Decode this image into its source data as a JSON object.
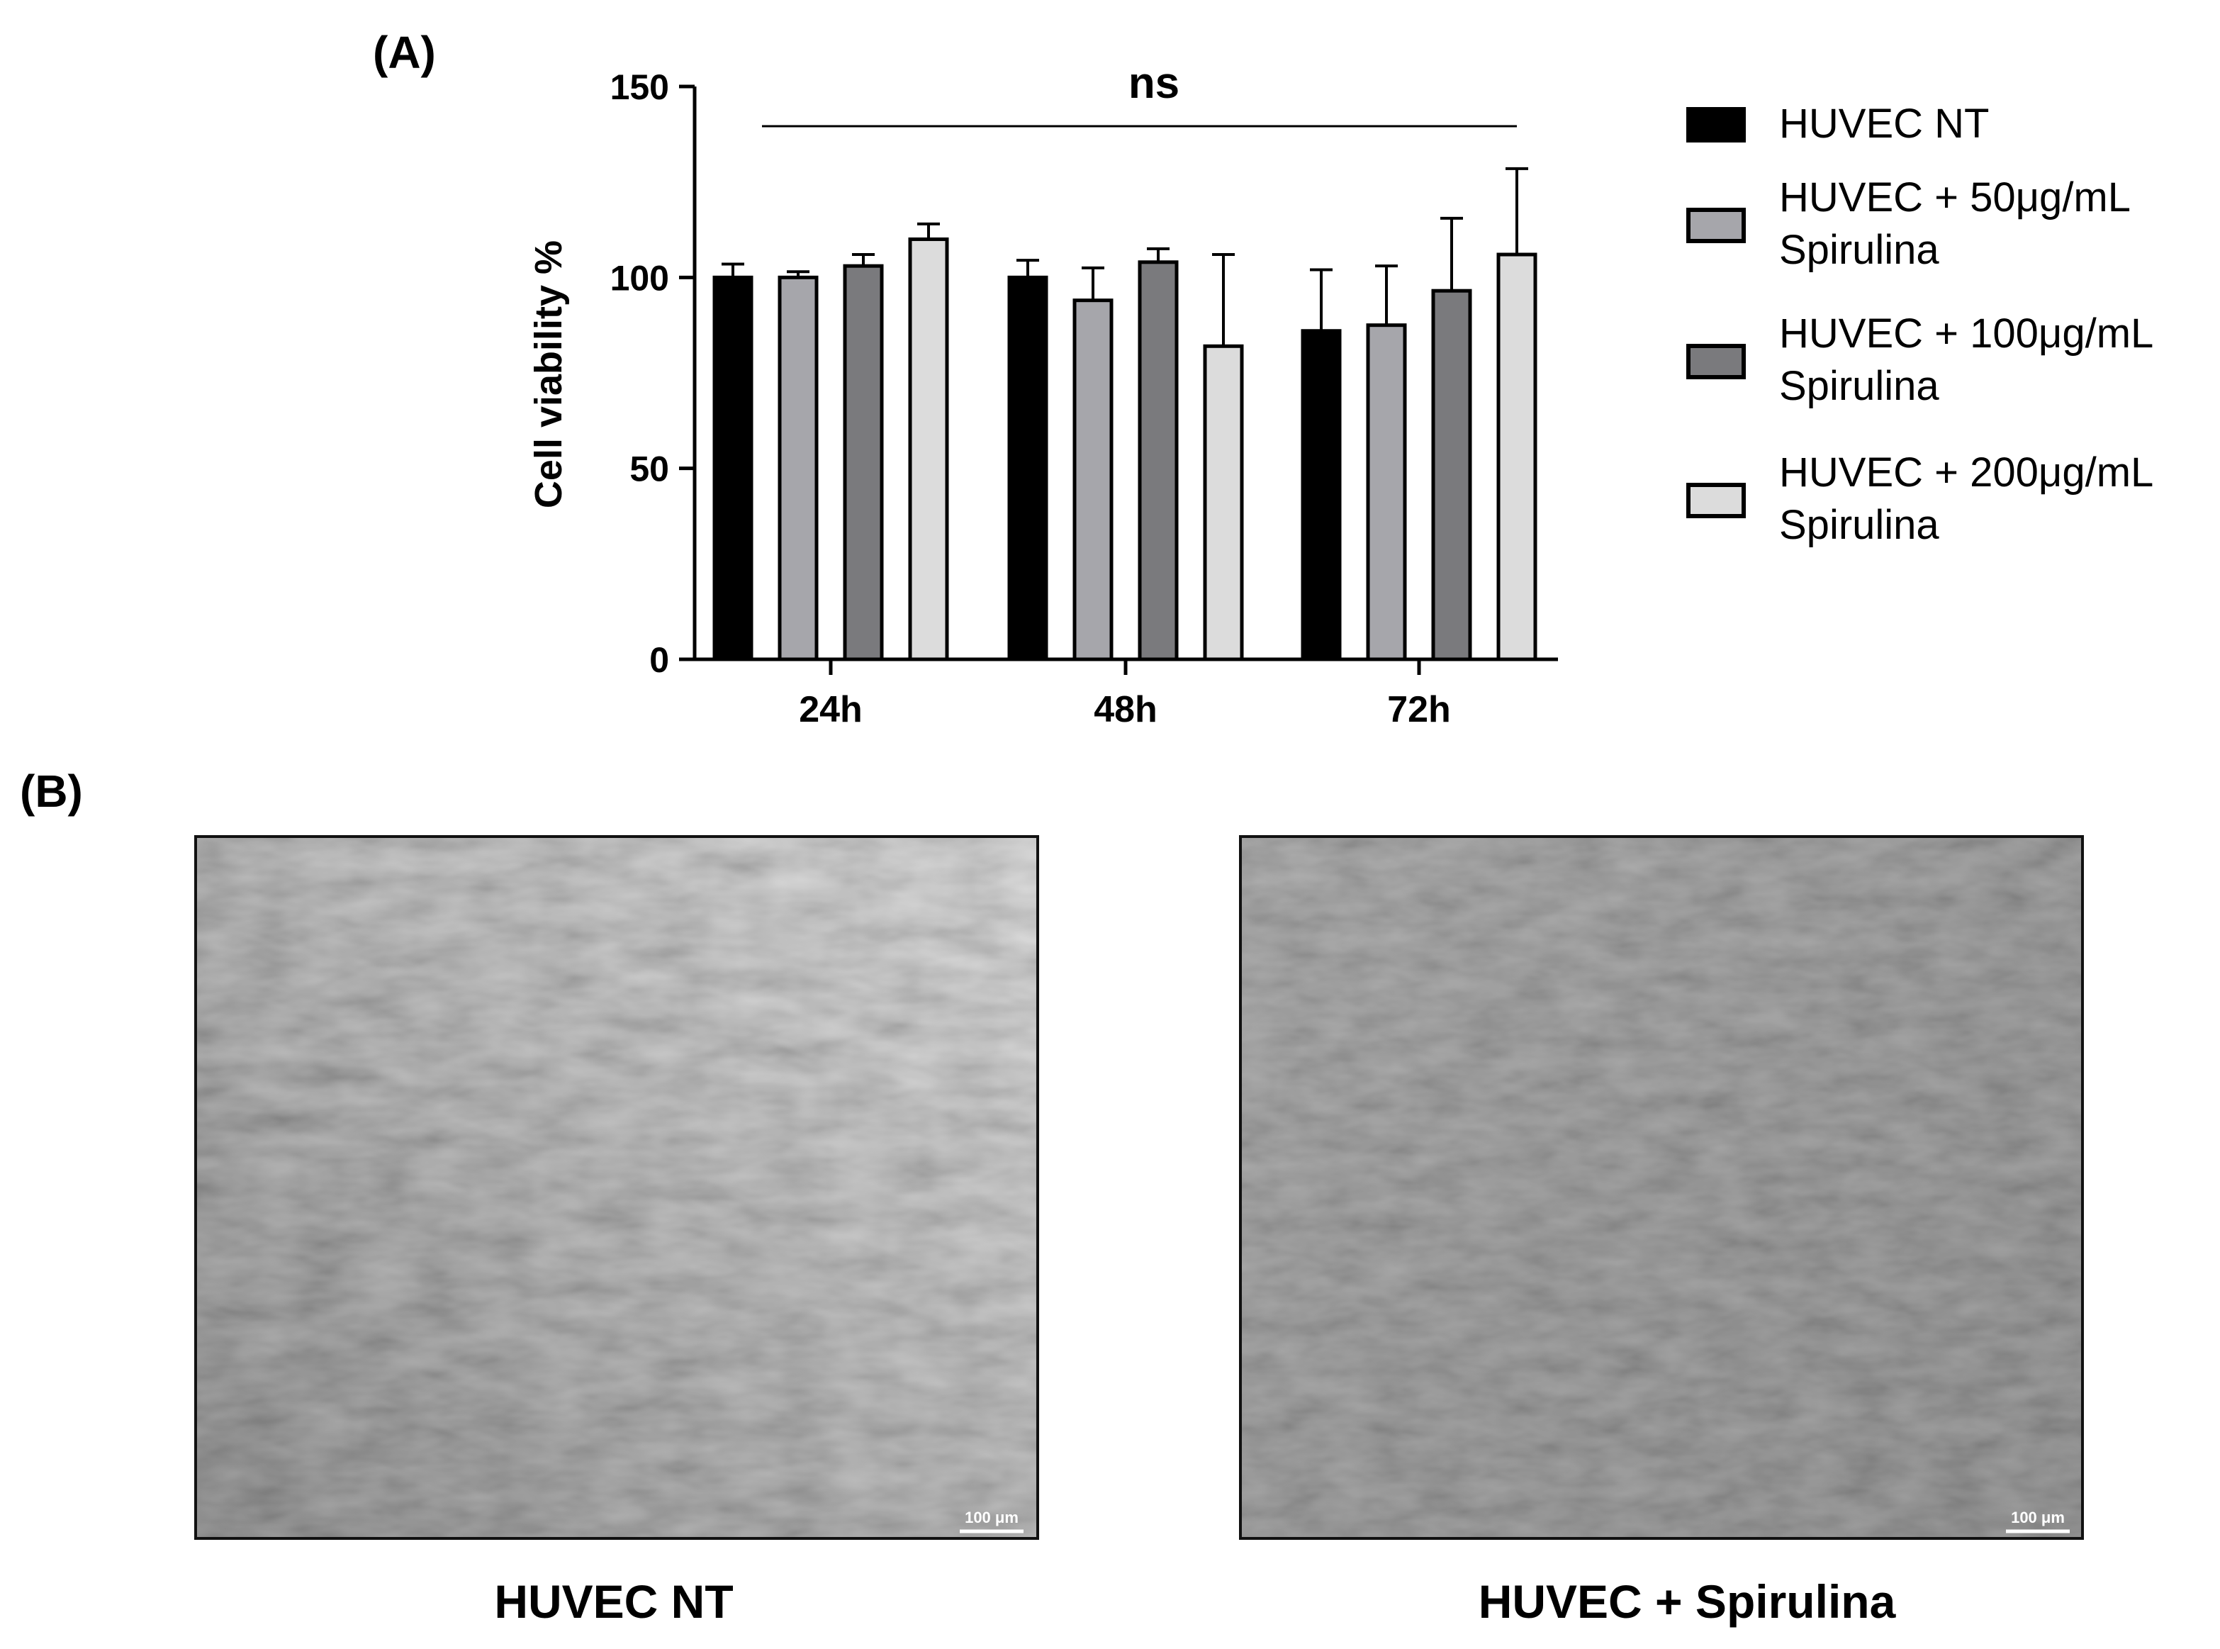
{
  "panel_a_label": "(A)",
  "panel_b_label": "(B)",
  "colors": {
    "series": [
      "#000000",
      "#a6a6ab",
      "#7a7a7d",
      "#dcdcdc"
    ],
    "outline": "#000000"
  },
  "chart_data": {
    "type": "bar",
    "title": "",
    "xlabel": "",
    "ylabel": "Cell viability %",
    "ylim": [
      0,
      150
    ],
    "yticks": [
      "0",
      "50",
      "100",
      "150"
    ],
    "categories": [
      "24h",
      "48h",
      "72h"
    ],
    "significance": "ns",
    "legend_position": "right",
    "series": [
      {
        "name": "HUVEC NT",
        "values": [
          100,
          100,
          86
        ],
        "errors": [
          3.5,
          4.5,
          16
        ]
      },
      {
        "name": "HUVEC + 50μg/mL Spirulina",
        "values": [
          100,
          94,
          87.5
        ],
        "errors": [
          1.5,
          8.5,
          15.5
        ]
      },
      {
        "name": "HUVEC + 100μg/mL Spirulina",
        "values": [
          103,
          104,
          96.5
        ],
        "errors": [
          3,
          3.5,
          19
        ]
      },
      {
        "name": "HUVEC + 200μg/mL Spirulina",
        "values": [
          110,
          82,
          106
        ],
        "errors": [
          4,
          24,
          22.5
        ]
      }
    ]
  },
  "images": [
    {
      "caption": "HUVEC NT",
      "scale_bar": "100 μm"
    },
    {
      "caption": "HUVEC + Spirulina",
      "scale_bar": "100 μm"
    }
  ]
}
